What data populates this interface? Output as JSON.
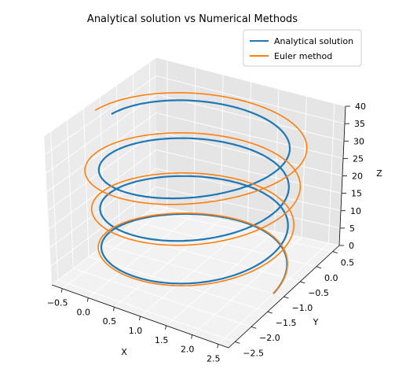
{
  "chart_data": {
    "type": "line",
    "projection": "3d",
    "title": "Analytical solution vs Numerical Methods",
    "xlabel": "X",
    "ylabel": "Y",
    "zlabel": "Z",
    "xlim": [
      -0.7,
      2.7
    ],
    "ylim": [
      -2.7,
      0.7
    ],
    "zlim": [
      0,
      40
    ],
    "xticks": [
      -0.5,
      0.0,
      0.5,
      1.0,
      1.5,
      2.0,
      2.5
    ],
    "xtick_labels": [
      "−0.5",
      "0.0",
      "0.5",
      "1.0",
      "1.5",
      "2.0",
      "2.5"
    ],
    "yticks": [
      -2.5,
      -2.0,
      -1.5,
      -1.0,
      -0.5,
      0.0,
      0.5
    ],
    "ytick_labels": [
      "−2.5",
      "−2.0",
      "−1.5",
      "−1.0",
      "−0.5",
      "0.0",
      "0.5"
    ],
    "zticks": [
      0,
      5,
      10,
      15,
      20,
      25,
      30,
      35,
      40
    ],
    "ztick_labels": [
      "0",
      "5",
      "10",
      "15",
      "20",
      "25",
      "30",
      "35",
      "40"
    ],
    "grid": true,
    "legend_position": "top-right",
    "series": [
      {
        "name": "Analytical solution",
        "color": "#1f77b4",
        "curve": "helix",
        "center": [
          1.0,
          -1.0
        ],
        "radius": 1.5,
        "start_angle_deg": 0,
        "turns": 3.5,
        "z_range": [
          0,
          36
        ]
      },
      {
        "name": "Euler method",
        "color": "#ff7f0e",
        "curve": "spiral",
        "center": [
          1.0,
          -1.0
        ],
        "radius_start": 1.5,
        "radius_end": 1.8,
        "start_angle_deg": 0,
        "turns": 3.5,
        "z_range": [
          0,
          36
        ]
      }
    ]
  }
}
